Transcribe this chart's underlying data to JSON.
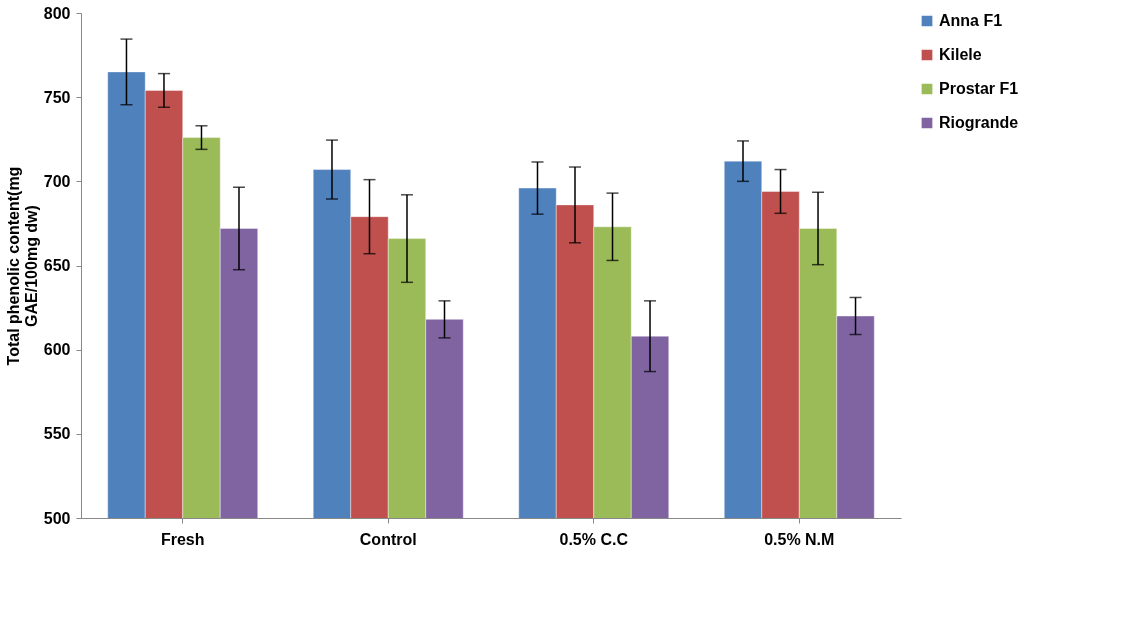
{
  "chart_data": {
    "type": "bar",
    "ylabel": "Total phenolic content(mg GAE/100mg dw)",
    "categories": [
      "Fresh",
      "Control",
      "0.5% C.C",
      "0.5% N.M"
    ],
    "series": [
      {
        "name": "Anna F1",
        "color": "#4f81bd",
        "values": [
          765,
          707,
          696,
          712
        ],
        "errors": [
          19.5,
          17.5,
          15.5,
          12
        ]
      },
      {
        "name": "Kilele",
        "color": "#c0504d",
        "values": [
          754,
          679,
          686,
          694
        ],
        "errors": [
          10,
          22,
          22.5,
          13
        ]
      },
      {
        "name": "Prostar F1",
        "color": "#9bbb59",
        "values": [
          726,
          666,
          673,
          672
        ],
        "errors": [
          7,
          26,
          20,
          21.5
        ]
      },
      {
        "name": "Riogrande",
        "color": "#8064a2",
        "values": [
          672,
          618,
          608,
          620
        ],
        "errors": [
          24.5,
          11,
          21,
          11
        ]
      }
    ],
    "ylim": [
      500,
      800
    ],
    "yticks": [
      500,
      550,
      600,
      650,
      700,
      750,
      800
    ],
    "grid": false,
    "legend": "right"
  }
}
